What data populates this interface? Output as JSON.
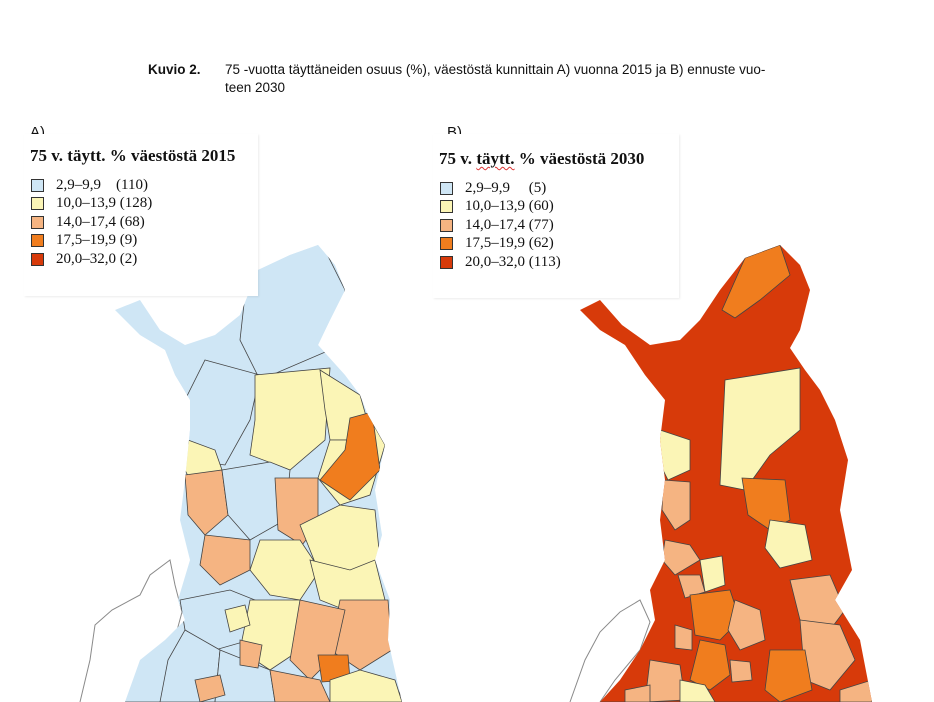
{
  "caption": {
    "label": "Kuvio 2.",
    "line1": "75 -vuotta täyttäneiden osuus (%), väestöstä kunnittain A) vuonna 2015 ja B) ennuste vuo-",
    "line2": "teen 2030"
  },
  "colors": {
    "class1": "#cfe6f5",
    "class2": "#fbf5b6",
    "class3": "#f5b482",
    "class4": "#f07d1e",
    "class5": "#d73a0a",
    "border": "#444444",
    "outline": "#8a8a8a"
  },
  "maps": [
    {
      "panel": "A)",
      "title": "75 v. täytt. % väestöstä 2015",
      "legend": [
        {
          "range": "2,9–9,9",
          "count": "(110)"
        },
        {
          "range": "10,0–13,9",
          "count": "(128)"
        },
        {
          "range": "14,0–17,4",
          "count": "(68)"
        },
        {
          "range": "17,5–19,9",
          "count": "(9)"
        },
        {
          "range": "20,0–32,0",
          "count": "(2)"
        }
      ]
    },
    {
      "panel": "B)",
      "title_parts": [
        "75 v. ",
        "täytt.",
        " % väestöstä 2030"
      ],
      "legend": [
        {
          "range": "2,9–9,9",
          "count": "(5)"
        },
        {
          "range": "10,0–13,9",
          "count": "(60)"
        },
        {
          "range": "14,0–17,4",
          "count": "(77)"
        },
        {
          "range": "17,5–19,9",
          "count": "(62)"
        },
        {
          "range": "20,0–32,0",
          "count": "(113)"
        }
      ]
    }
  ]
}
